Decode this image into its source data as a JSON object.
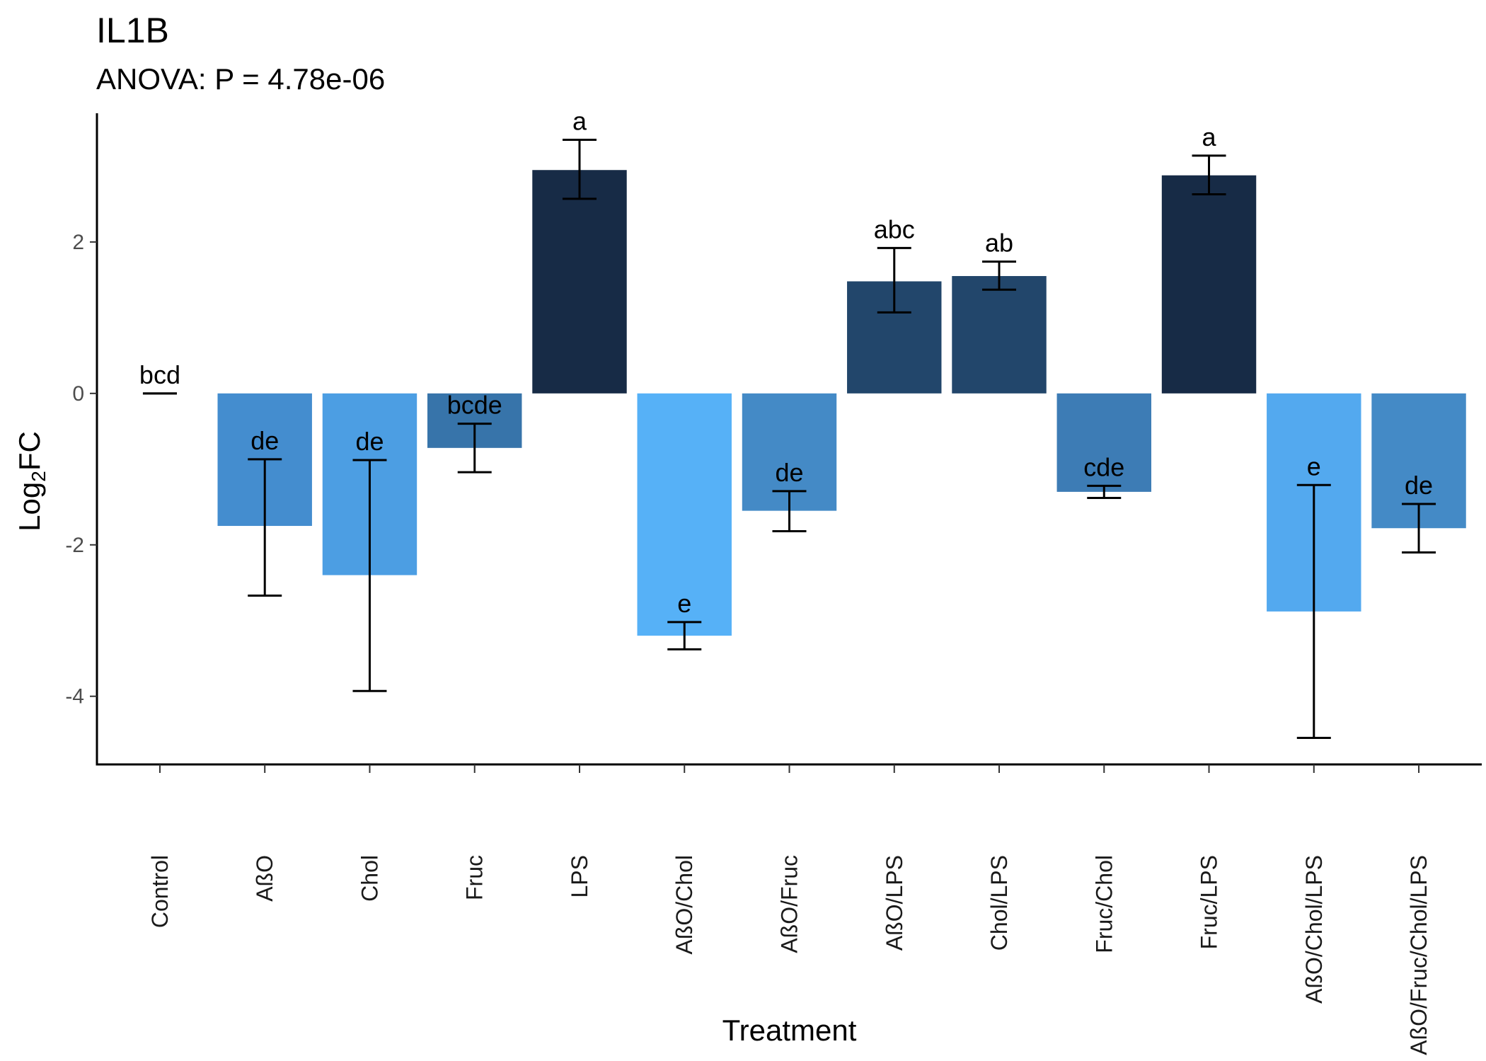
{
  "chart_data": {
    "type": "bar",
    "title": "IL1B",
    "subtitle": "ANOVA: P = 4.78e-06",
    "xlabel": "Treatment",
    "ylabel": "Log",
    "ylabel_sub": "2",
    "ylabel_suffix": "FC",
    "ylim": [
      -4.9,
      3.7
    ],
    "yticks": [
      -4,
      -2,
      0,
      2
    ],
    "grid": false,
    "categories": [
      "Control",
      "AßO",
      "Chol",
      "Fruc",
      "LPS",
      "AßO/Chol",
      "AßO/Fruc",
      "AßO/LPS",
      "Chol/LPS",
      "Fruc/Chol",
      "Fruc/LPS",
      "AßO/Chol/LPS",
      "AßO/Fruc/Chol/LPS"
    ],
    "values": [
      0,
      -1.75,
      -2.4,
      -0.72,
      2.95,
      -3.2,
      -1.55,
      1.48,
      1.55,
      -1.3,
      2.88,
      -2.88,
      -1.78
    ],
    "err_low": [
      0,
      -2.67,
      -3.93,
      -1.04,
      2.57,
      -3.38,
      -1.82,
      1.07,
      1.37,
      -1.38,
      2.63,
      -4.55,
      -2.1
    ],
    "err_high": [
      0,
      -0.87,
      -0.88,
      -0.4,
      3.35,
      -3.02,
      -1.29,
      1.92,
      1.74,
      -1.22,
      3.14,
      -1.21,
      -1.46
    ],
    "sig_labels": [
      "bcd",
      "de",
      "de",
      "bcde",
      "a",
      "e",
      "de",
      "abc",
      "ab",
      "cde",
      "a",
      "e",
      "de"
    ],
    "colors": [
      "#1f3550",
      "#448dcf",
      "#4c9ee3",
      "#3774aa",
      "#172b46",
      "#56b1f7",
      "#448ac6",
      "#22466b",
      "#22466b",
      "#3d7cb5",
      "#172b46",
      "#53a9ef",
      "#448ac6"
    ]
  }
}
